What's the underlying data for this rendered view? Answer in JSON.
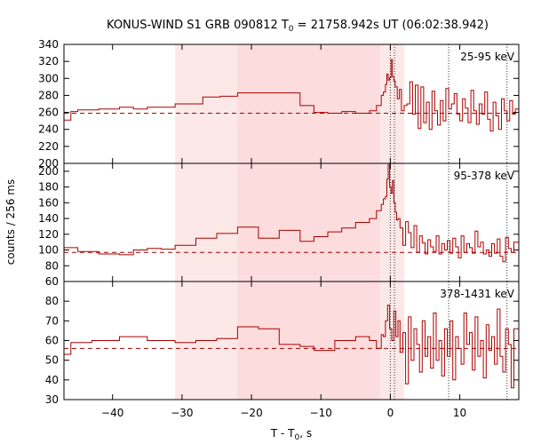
{
  "chart_data": {
    "type": "line",
    "title_main": "KONUS-WIND S1 GRB 090812 T",
    "title_sub": "0",
    "title_tail": " = 21758.942s UT (06:02:38.942)",
    "ylabel": "counts / 256 ms",
    "xlabel_main": "T - T",
    "xlabel_sub": "0",
    "xlabel_tail": ", s",
    "xlim": [
      -47,
      18.5
    ],
    "x_ticks": [
      -40,
      -30,
      -20,
      -10,
      0,
      10
    ],
    "colors": {
      "line": "#aa0000",
      "band_light": "#fde8e8",
      "band_dark": "#fcdcdc"
    },
    "shaded_intervals": [
      {
        "from": -31,
        "to": 2.0,
        "shade": "light"
      },
      {
        "from": -22,
        "to": -1.5,
        "shade": "dark"
      }
    ],
    "vertical_markers": [
      0,
      0.6,
      8.4,
      16.8
    ],
    "panels": [
      {
        "label": "25-95 keV",
        "ylim": [
          200,
          340
        ],
        "yticks": [
          200,
          220,
          240,
          260,
          280,
          300,
          320,
          340
        ],
        "background": 259,
        "x": [
          -47,
          -46,
          -45,
          -42,
          -39,
          -37,
          -35,
          -31,
          -27,
          -24.5,
          -22,
          -17,
          -13,
          -11,
          -9,
          -7,
          -5,
          -3,
          -2,
          -1.3,
          -1,
          -0.7,
          -0.5,
          -0.3,
          -0.1,
          0.1,
          0.3,
          0.5,
          0.7,
          1.0,
          1.3,
          1.6,
          2.0,
          2.4,
          2.8,
          3.2,
          3.6,
          4.0,
          4.4,
          4.8,
          5.2,
          5.6,
          6.0,
          6.4,
          6.8,
          7.2,
          7.6,
          8.0,
          8.4,
          8.8,
          9.2,
          9.6,
          10.0,
          10.4,
          10.8,
          11.2,
          11.6,
          12.0,
          12.4,
          12.8,
          13.2,
          13.6,
          14.0,
          14.4,
          14.8,
          15.2,
          15.6,
          16.0,
          16.4,
          16.8,
          17.2,
          17.6,
          18.0
        ],
        "y": [
          251,
          261,
          263,
          264,
          266,
          264,
          266,
          270,
          278,
          279,
          283,
          283,
          268,
          260,
          259,
          261,
          259,
          262,
          268,
          280,
          284,
          293,
          305,
          298,
          301,
          322,
          302,
          297,
          290,
          276,
          287,
          262,
          268,
          270,
          296,
          258,
          292,
          241,
          290,
          248,
          272,
          240,
          285,
          262,
          245,
          274,
          250,
          288,
          264,
          270,
          282,
          258,
          250,
          276,
          265,
          248,
          286,
          262,
          246,
          270,
          258,
          284,
          252,
          238,
          272,
          256,
          240,
          276,
          262,
          250,
          274,
          258,
          264
        ]
      },
      {
        "label": "95-378 keV",
        "ylim": [
          60,
          210
        ],
        "yticks": [
          60,
          80,
          100,
          120,
          140,
          160,
          180,
          200
        ],
        "background": 97,
        "x": [
          -47,
          -45,
          -42,
          -39,
          -37,
          -35,
          -33,
          -31,
          -28,
          -25,
          -22,
          -19,
          -16,
          -13,
          -11,
          -9,
          -7,
          -5,
          -3,
          -2,
          -1.3,
          -1,
          -0.7,
          -0.5,
          -0.3,
          -0.1,
          0.1,
          0.3,
          0.5,
          0.7,
          0.9,
          1.1,
          1.4,
          1.8,
          2.2,
          2.6,
          3.0,
          3.4,
          3.8,
          4.2,
          4.6,
          5.0,
          5.4,
          5.8,
          6.2,
          6.6,
          7.0,
          7.4,
          7.8,
          8.2,
          8.6,
          9.0,
          9.4,
          9.8,
          10.2,
          10.6,
          11.0,
          11.4,
          11.8,
          12.2,
          12.6,
          13.0,
          13.4,
          13.8,
          14.2,
          14.6,
          15.0,
          15.4,
          15.8,
          16.2,
          16.6,
          17.0,
          17.4,
          17.8
        ],
        "y": [
          103,
          98,
          95,
          94,
          100,
          102,
          101,
          106,
          115,
          121,
          129,
          115,
          125,
          111,
          117,
          123,
          128,
          135,
          140,
          150,
          158,
          165,
          168,
          190,
          210,
          180,
          172,
          188,
          160,
          148,
          138,
          140,
          128,
          106,
          136,
          122,
          103,
          131,
          97,
          118,
          109,
          95,
          113,
          104,
          98,
          118,
          95,
          108,
          100,
          112,
          96,
          115,
          104,
          90,
          118,
          97,
          108,
          103,
          96,
          124,
          104,
          110,
          95,
          100,
          92,
          108,
          96,
          114,
          92,
          85,
          116,
          102,
          97,
          110
        ]
      },
      {
        "label": "378-1431 keV",
        "ylim": [
          30,
          90
        ],
        "yticks": [
          30,
          40,
          50,
          60,
          70,
          80
        ],
        "background": 56,
        "x": [
          -47,
          -46,
          -43,
          -39,
          -35,
          -31,
          -28,
          -25,
          -22,
          -19,
          -16,
          -13,
          -11,
          -8,
          -5,
          -3,
          -2,
          -1.3,
          -1,
          -0.7,
          -0.4,
          -0.1,
          0.2,
          0.5,
          0.8,
          1.1,
          1.4,
          1.8,
          2.2,
          2.6,
          3.0,
          3.4,
          3.8,
          4.2,
          4.6,
          5.0,
          5.4,
          5.8,
          6.2,
          6.6,
          7.0,
          7.4,
          7.8,
          8.2,
          8.6,
          9.0,
          9.4,
          9.8,
          10.2,
          10.6,
          11.0,
          11.4,
          11.8,
          12.2,
          12.6,
          13.0,
          13.4,
          13.8,
          14.2,
          14.6,
          15.0,
          15.4,
          15.8,
          16.2,
          16.6,
          17.0,
          17.4,
          17.8
        ],
        "y": [
          53,
          59,
          60,
          62,
          60,
          59,
          60,
          61,
          67,
          66,
          58,
          57,
          55,
          60,
          62,
          60,
          56,
          63,
          62,
          70,
          78,
          66,
          60,
          75,
          62,
          70,
          54,
          64,
          38,
          72,
          50,
          66,
          58,
          44,
          70,
          52,
          62,
          46,
          74,
          50,
          60,
          42,
          66,
          52,
          70,
          40,
          62,
          56,
          48,
          74,
          58,
          64,
          45,
          72,
          52,
          60,
          41,
          68,
          55,
          62,
          48,
          76,
          52,
          44,
          66,
          58,
          36,
          66
        ]
      }
    ]
  }
}
